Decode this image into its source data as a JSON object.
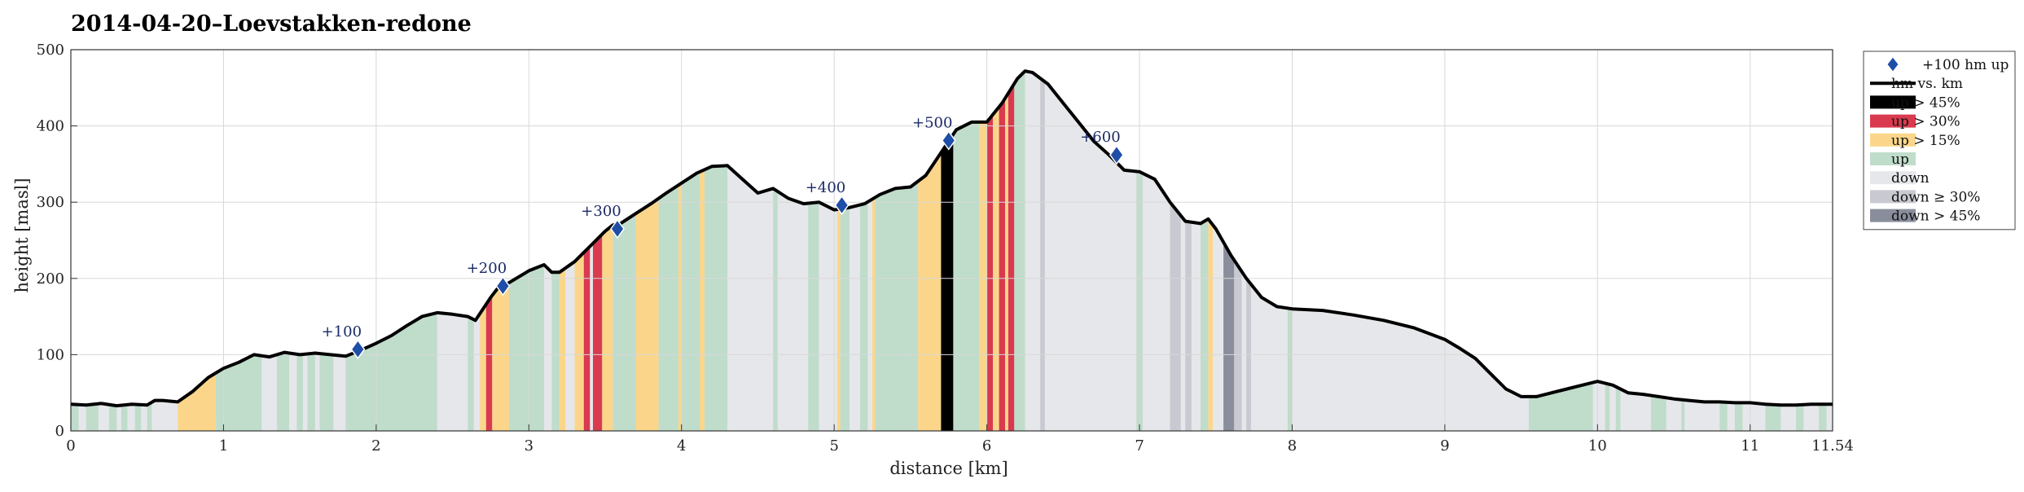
{
  "chart_data": {
    "type": "area",
    "title": "2014-04-20–Loevstakken-redone",
    "xlabel": "distance [km]",
    "ylabel": "height [masl]",
    "xlim": [
      0,
      11.54
    ],
    "ylim": [
      0,
      500
    ],
    "xticks": [
      0,
      1,
      2,
      3,
      4,
      5,
      6,
      7,
      8,
      9,
      10,
      11,
      11.54
    ],
    "xtick_labels": [
      "0",
      "1",
      "2",
      "3",
      "4",
      "5",
      "6",
      "7",
      "8",
      "9",
      "10",
      "11",
      "11.54"
    ],
    "yticks": [
      0,
      100,
      200,
      300,
      400,
      500
    ],
    "grid": true,
    "legend_position": "outside-right",
    "profile": {
      "x": [
        0,
        0.1,
        0.2,
        0.3,
        0.4,
        0.5,
        0.55,
        0.6,
        0.7,
        0.8,
        0.9,
        1.0,
        1.1,
        1.2,
        1.3,
        1.4,
        1.5,
        1.6,
        1.7,
        1.8,
        1.9,
        2.0,
        2.1,
        2.2,
        2.3,
        2.4,
        2.5,
        2.6,
        2.65,
        2.7,
        2.75,
        2.8,
        2.85,
        2.9,
        3.0,
        3.1,
        3.15,
        3.2,
        3.3,
        3.35,
        3.4,
        3.5,
        3.55,
        3.6,
        3.7,
        3.8,
        3.9,
        4.0,
        4.1,
        4.2,
        4.3,
        4.4,
        4.5,
        4.6,
        4.7,
        4.8,
        4.9,
        5.0,
        5.1,
        5.2,
        5.3,
        5.4,
        5.5,
        5.6,
        5.7,
        5.75,
        5.8,
        5.9,
        6.0,
        6.1,
        6.2,
        6.25,
        6.3,
        6.4,
        6.5,
        6.6,
        6.7,
        6.8,
        6.9,
        7.0,
        7.1,
        7.2,
        7.3,
        7.4,
        7.45,
        7.5,
        7.6,
        7.7,
        7.8,
        7.9,
        8.0,
        8.2,
        8.4,
        8.6,
        8.8,
        9.0,
        9.1,
        9.2,
        9.3,
        9.4,
        9.5,
        9.6,
        9.7,
        9.8,
        9.9,
        10.0,
        10.1,
        10.2,
        10.3,
        10.4,
        10.5,
        10.6,
        10.7,
        10.8,
        10.9,
        11.0,
        11.1,
        11.2,
        11.3,
        11.4,
        11.5,
        11.54
      ],
      "y": [
        35,
        34,
        36,
        33,
        35,
        34,
        40,
        40,
        38,
        52,
        70,
        82,
        90,
        100,
        97,
        103,
        100,
        102,
        100,
        98,
        106,
        115,
        125,
        138,
        150,
        155,
        153,
        150,
        145,
        160,
        175,
        188,
        192,
        198,
        210,
        218,
        208,
        208,
        222,
        232,
        242,
        262,
        270,
        272,
        285,
        298,
        312,
        325,
        338,
        347,
        348,
        330,
        312,
        318,
        305,
        298,
        300,
        290,
        293,
        298,
        310,
        318,
        320,
        335,
        365,
        380,
        395,
        405,
        405,
        430,
        462,
        472,
        470,
        455,
        430,
        405,
        380,
        362,
        342,
        340,
        330,
        300,
        275,
        272,
        278,
        265,
        230,
        200,
        175,
        163,
        160,
        158,
        152,
        145,
        135,
        120,
        108,
        95,
        75,
        55,
        45,
        45,
        50,
        55,
        60,
        65,
        60,
        50,
        48,
        45,
        42,
        40,
        38,
        38,
        37,
        37,
        35,
        34,
        34,
        35,
        35,
        35
      ]
    },
    "markers": {
      "series": "+100 hm up",
      "x": [
        1.88,
        2.83,
        3.58,
        5.05,
        5.75,
        6.85
      ],
      "y": [
        107,
        190,
        265,
        296,
        381,
        362
      ],
      "labels": [
        "+100",
        "+200",
        "+300",
        "+400",
        "+500",
        "+600"
      ]
    },
    "slope_bands": [
      {
        "x0": 0.0,
        "x1": 0.05,
        "cat": "up"
      },
      {
        "x0": 0.1,
        "x1": 0.18,
        "cat": "up"
      },
      {
        "x0": 0.25,
        "x1": 0.3,
        "cat": "up"
      },
      {
        "x0": 0.33,
        "x1": 0.37,
        "cat": "up"
      },
      {
        "x0": 0.42,
        "x1": 0.46,
        "cat": "up"
      },
      {
        "x0": 0.5,
        "x1": 0.53,
        "cat": "up"
      },
      {
        "x0": 0.7,
        "x1": 0.95,
        "cat": "up15"
      },
      {
        "x0": 0.95,
        "x1": 1.0,
        "cat": "up"
      },
      {
        "x0": 1.0,
        "x1": 1.25,
        "cat": "up"
      },
      {
        "x0": 1.35,
        "x1": 1.43,
        "cat": "up"
      },
      {
        "x0": 1.48,
        "x1": 1.52,
        "cat": "up"
      },
      {
        "x0": 1.55,
        "x1": 1.6,
        "cat": "up"
      },
      {
        "x0": 1.63,
        "x1": 1.72,
        "cat": "up"
      },
      {
        "x0": 1.8,
        "x1": 1.96,
        "cat": "up"
      },
      {
        "x0": 1.96,
        "x1": 2.4,
        "cat": "up"
      },
      {
        "x0": 2.4,
        "x1": 2.6,
        "cat": "down"
      },
      {
        "x0": 2.6,
        "x1": 2.64,
        "cat": "up"
      },
      {
        "x0": 2.68,
        "x1": 2.72,
        "cat": "up15"
      },
      {
        "x0": 2.72,
        "x1": 2.76,
        "cat": "up30"
      },
      {
        "x0": 2.76,
        "x1": 2.87,
        "cat": "up15"
      },
      {
        "x0": 2.87,
        "x1": 3.1,
        "cat": "up"
      },
      {
        "x0": 3.15,
        "x1": 3.2,
        "cat": "up"
      },
      {
        "x0": 3.2,
        "x1": 3.24,
        "cat": "up15"
      },
      {
        "x0": 3.3,
        "x1": 3.36,
        "cat": "up15"
      },
      {
        "x0": 3.36,
        "x1": 3.4,
        "cat": "up30"
      },
      {
        "x0": 3.42,
        "x1": 3.48,
        "cat": "up30"
      },
      {
        "x0": 3.48,
        "x1": 3.55,
        "cat": "up15"
      },
      {
        "x0": 3.55,
        "x1": 3.7,
        "cat": "up"
      },
      {
        "x0": 3.7,
        "x1": 3.85,
        "cat": "up15"
      },
      {
        "x0": 3.85,
        "x1": 3.98,
        "cat": "up"
      },
      {
        "x0": 3.98,
        "x1": 4.0,
        "cat": "up15"
      },
      {
        "x0": 4.0,
        "x1": 4.12,
        "cat": "up"
      },
      {
        "x0": 4.12,
        "x1": 4.15,
        "cat": "up15"
      },
      {
        "x0": 4.15,
        "x1": 4.3,
        "cat": "up"
      },
      {
        "x0": 4.6,
        "x1": 4.63,
        "cat": "up"
      },
      {
        "x0": 4.83,
        "x1": 4.9,
        "cat": "up"
      },
      {
        "x0": 5.02,
        "x1": 5.04,
        "cat": "up15"
      },
      {
        "x0": 5.04,
        "x1": 5.1,
        "cat": "up"
      },
      {
        "x0": 5.17,
        "x1": 5.22,
        "cat": "up"
      },
      {
        "x0": 5.25,
        "x1": 5.27,
        "cat": "up15"
      },
      {
        "x0": 5.27,
        "x1": 5.47,
        "cat": "up"
      },
      {
        "x0": 5.47,
        "x1": 5.55,
        "cat": "up"
      },
      {
        "x0": 5.55,
        "x1": 5.7,
        "cat": "up15"
      },
      {
        "x0": 5.7,
        "x1": 5.78,
        "cat": "up45"
      },
      {
        "x0": 5.78,
        "x1": 5.95,
        "cat": "up"
      },
      {
        "x0": 5.95,
        "x1": 6.0,
        "cat": "up15"
      },
      {
        "x0": 6.0,
        "x1": 6.04,
        "cat": "up30"
      },
      {
        "x0": 6.04,
        "x1": 6.08,
        "cat": "up15"
      },
      {
        "x0": 6.08,
        "x1": 6.12,
        "cat": "up30"
      },
      {
        "x0": 6.12,
        "x1": 6.14,
        "cat": "up15"
      },
      {
        "x0": 6.14,
        "x1": 6.18,
        "cat": "up30"
      },
      {
        "x0": 6.18,
        "x1": 6.25,
        "cat": "up"
      },
      {
        "x0": 6.35,
        "x1": 6.38,
        "cat": "down30"
      },
      {
        "x0": 6.98,
        "x1": 7.02,
        "cat": "up"
      },
      {
        "x0": 7.2,
        "x1": 7.27,
        "cat": "down30"
      },
      {
        "x0": 7.3,
        "x1": 7.34,
        "cat": "down30"
      },
      {
        "x0": 7.4,
        "x1": 7.45,
        "cat": "up"
      },
      {
        "x0": 7.45,
        "x1": 7.48,
        "cat": "up15"
      },
      {
        "x0": 7.55,
        "x1": 7.62,
        "cat": "down45"
      },
      {
        "x0": 7.62,
        "x1": 7.67,
        "cat": "down30"
      },
      {
        "x0": 7.67,
        "x1": 7.7,
        "cat": "down"
      },
      {
        "x0": 7.7,
        "x1": 7.73,
        "cat": "down30"
      },
      {
        "x0": 7.97,
        "x1": 8.0,
        "cat": "up"
      },
      {
        "x0": 9.55,
        "x1": 9.97,
        "cat": "up"
      },
      {
        "x0": 10.05,
        "x1": 10.08,
        "cat": "up"
      },
      {
        "x0": 10.12,
        "x1": 10.15,
        "cat": "up"
      },
      {
        "x0": 10.35,
        "x1": 10.45,
        "cat": "up"
      },
      {
        "x0": 10.55,
        "x1": 10.57,
        "cat": "up"
      },
      {
        "x0": 10.8,
        "x1": 10.85,
        "cat": "up"
      },
      {
        "x0": 10.9,
        "x1": 10.95,
        "cat": "up"
      },
      {
        "x0": 11.1,
        "x1": 11.2,
        "cat": "up"
      },
      {
        "x0": 11.3,
        "x1": 11.35,
        "cat": "up"
      },
      {
        "x0": 11.45,
        "x1": 11.5,
        "cat": "up"
      }
    ],
    "legend": [
      {
        "key": "marker",
        "label": "+100 hm up"
      },
      {
        "key": "line",
        "label": "hm vs. km"
      },
      {
        "key": "up45",
        "label": "up > 45%"
      },
      {
        "key": "up30",
        "label": "up > 30%"
      },
      {
        "key": "up15",
        "label": "up > 15%"
      },
      {
        "key": "up",
        "label": "up"
      },
      {
        "key": "down",
        "label": "down"
      },
      {
        "key": "down30",
        "label": "down ≥ 30%"
      },
      {
        "key": "down45",
        "label": "down > 45%"
      }
    ],
    "colors": {
      "line": "#000000",
      "marker": "#1f4ea8",
      "marker_edge": "#ffffff",
      "marker_text": "#1a2a66",
      "up45": "#000000",
      "up30": "#d93a4f",
      "up15": "#fbd68a",
      "up": "#c0dccb",
      "down": "#e6e7ea",
      "down30": "#c8c9d1",
      "down45": "#8a8e9c",
      "grid": "#d8d8d8"
    }
  }
}
